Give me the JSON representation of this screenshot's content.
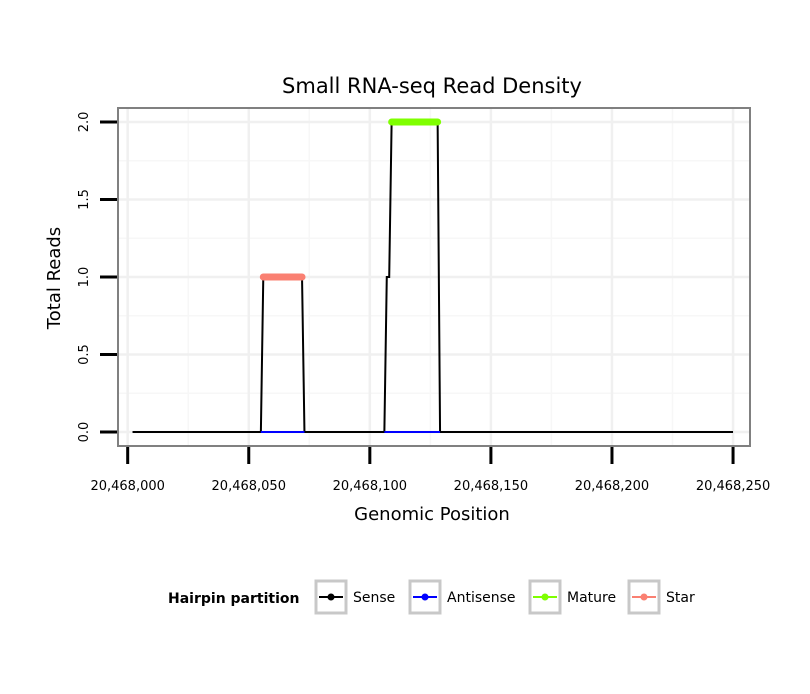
{
  "chart_data": {
    "type": "line",
    "title": "Small RNA-seq Read Density",
    "xlabel": "Genomic Position",
    "ylabel": "Total Reads",
    "xlim": [
      20467996,
      20468257
    ],
    "ylim": [
      -0.09,
      2.09
    ],
    "x_ticks": [
      20468000,
      20468050,
      20468100,
      20468150,
      20468200,
      20468250
    ],
    "x_tick_labels": [
      "20,468,000",
      "20,468,050",
      "20,468,100",
      "20,468,150",
      "20,468,200",
      "20,468,250"
    ],
    "y_ticks": [
      0,
      0.5,
      1,
      1.5,
      2
    ],
    "y_tick_labels": [
      "0.0",
      "0.5",
      "1.0",
      "1.5",
      "2.0"
    ],
    "grid": true,
    "legend": {
      "title": "Hairpin partition",
      "position": "bottom"
    },
    "series": [
      {
        "name": "Sense",
        "color": "#000000",
        "points": [
          [
            20468002,
            0
          ],
          [
            20468055,
            0
          ],
          [
            20468056,
            1
          ],
          [
            20468072,
            1
          ],
          [
            20468073,
            0
          ],
          [
            20468106,
            0
          ],
          [
            20468107,
            1
          ],
          [
            20468108,
            1
          ],
          [
            20468109,
            2
          ],
          [
            20468128,
            2
          ],
          [
            20468129,
            0
          ],
          [
            20468250,
            0
          ]
        ]
      },
      {
        "name": "Antisense",
        "color": "#0000ff",
        "points": [
          [
            20468055,
            0
          ],
          [
            20468073,
            0
          ],
          [
            20468106,
            0
          ],
          [
            20468129,
            0
          ]
        ],
        "segments": [
          [
            0,
            1
          ],
          [
            2,
            3
          ]
        ]
      },
      {
        "name": "Mature",
        "color": "#7fff00",
        "points": [
          [
            20468109,
            2
          ],
          [
            20468128,
            2
          ]
        ]
      },
      {
        "name": "Star",
        "color": "#fa8072",
        "points": [
          [
            20468056,
            1
          ],
          [
            20468072,
            1
          ]
        ]
      }
    ]
  }
}
